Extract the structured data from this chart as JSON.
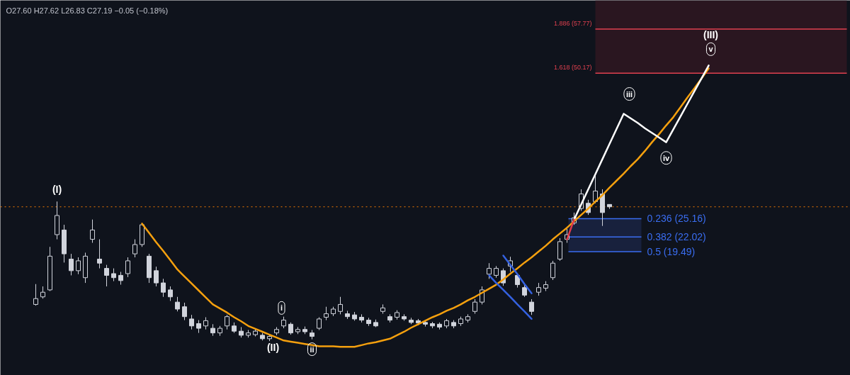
{
  "chart_data": {
    "type": "candlestick",
    "subtitle": "O27.60 H27.62 L26.83 C27.19 −0.05 (−0.18%)",
    "color": "#d1d4dc",
    "categories": [
      null,
      null,
      null,
      null,
      null,
      null,
      null,
      null,
      null,
      null,
      null,
      null,
      null,
      null,
      null,
      null,
      null,
      null,
      null,
      null,
      null,
      null,
      null,
      null,
      null,
      null,
      null,
      null,
      null,
      null,
      null,
      null,
      null,
      null,
      null,
      null,
      null,
      null,
      null,
      null,
      null,
      null,
      null,
      null,
      null,
      null,
      null,
      null,
      null,
      null,
      null,
      null,
      null,
      null,
      null,
      null,
      null,
      null,
      null,
      null,
      null,
      null,
      null,
      null,
      null,
      null,
      null,
      null,
      null,
      null,
      null,
      null,
      null,
      null,
      null,
      null,
      null,
      null,
      null,
      null,
      null,
      null,
      null,
      null,
      null,
      null,
      null,
      null,
      null,
      null,
      null,
      null,
      null,
      null,
      null,
      null,
      null,
      null,
      null,
      null,
      null,
      null,
      null,
      null,
      null,
      null,
      null,
      null,
      null,
      null,
      null,
      null,
      null,
      null,
      null
    ],
    "ohlc": [
      [
        10.4,
        13.9,
        10.2,
        11.4
      ],
      [
        11.7,
        13.5,
        11.4,
        12.5
      ],
      [
        12.9,
        20.3,
        12.7,
        18.7
      ],
      [
        22.4,
        28.1,
        21.6,
        25.7
      ],
      [
        23.2,
        24.1,
        17.6,
        19.1
      ],
      [
        18.2,
        19.1,
        15.4,
        16.2
      ],
      [
        16.2,
        18.5,
        15.6,
        17.9
      ],
      [
        15.0,
        19.3,
        14.1,
        18.7
      ],
      [
        21.6,
        25.0,
        21.0,
        23.2
      ],
      [
        18.2,
        21.6,
        16.6,
        17.5
      ],
      [
        16.6,
        17.2,
        13.5,
        15.4
      ],
      [
        15.7,
        16.6,
        14.4,
        15.0
      ],
      [
        15.4,
        16.0,
        13.8,
        14.5
      ],
      [
        15.7,
        18.5,
        15.1,
        17.9
      ],
      [
        19.1,
        21.6,
        18.5,
        20.7
      ],
      [
        20.7,
        24.3,
        20.3,
        24.1
      ],
      [
        18.7,
        19.1,
        14.1,
        15.0
      ],
      [
        16.2,
        16.9,
        13.5,
        14.1
      ],
      [
        14.1,
        14.8,
        11.7,
        12.5
      ],
      [
        12.9,
        13.5,
        11.0,
        11.7
      ],
      [
        10.8,
        11.7,
        9.2,
        9.6
      ],
      [
        10.0,
        10.7,
        7.7,
        8.3
      ],
      [
        7.9,
        8.6,
        6.1,
        6.7
      ],
      [
        7.1,
        7.7,
        5.5,
        6.3
      ],
      [
        6.7,
        8.2,
        6.1,
        7.6
      ],
      [
        6.3,
        7.0,
        5.0,
        5.5
      ],
      [
        5.5,
        6.7,
        5.0,
        6.3
      ],
      [
        6.7,
        8.6,
        6.1,
        8.3
      ],
      [
        6.7,
        7.3,
        5.5,
        5.8
      ],
      [
        5.8,
        6.5,
        4.7,
        5.1
      ],
      [
        5.1,
        6.0,
        4.7,
        5.5
      ],
      [
        5.2,
        6.3,
        4.9,
        5.8
      ],
      [
        5.1,
        5.5,
        4.2,
        4.5
      ],
      [
        4.5,
        5.2,
        4.1,
        4.9
      ],
      [
        5.5,
        6.5,
        5.1,
        6.1
      ],
      [
        6.7,
        8.3,
        6.3,
        7.7
      ],
      [
        7.0,
        7.3,
        5.2,
        5.5
      ],
      [
        5.7,
        6.5,
        5.3,
        6.1
      ],
      [
        6.1,
        6.6,
        5.3,
        5.7
      ],
      [
        5.5,
        6.0,
        4.4,
        4.9
      ],
      [
        6.3,
        8.2,
        6.0,
        7.9
      ],
      [
        8.2,
        10.0,
        7.7,
        8.8
      ],
      [
        8.8,
        10.0,
        8.4,
        9.6
      ],
      [
        9.2,
        11.7,
        8.7,
        10.4
      ],
      [
        8.8,
        9.3,
        7.9,
        8.3
      ],
      [
        8.6,
        9.1,
        7.6,
        7.9
      ],
      [
        8.2,
        8.7,
        7.3,
        7.7
      ],
      [
        7.7,
        8.1,
        6.7,
        7.1
      ],
      [
        7.3,
        7.8,
        6.5,
        6.7
      ],
      [
        9.2,
        10.4,
        8.8,
        9.8
      ],
      [
        8.3,
        8.7,
        7.3,
        7.7
      ],
      [
        8.2,
        9.4,
        7.8,
        9.0
      ],
      [
        8.3,
        8.7,
        7.6,
        7.9
      ],
      [
        7.7,
        8.1,
        7.0,
        7.3
      ],
      [
        7.6,
        7.9,
        6.8,
        7.2
      ],
      [
        7.3,
        7.7,
        6.6,
        7.0
      ],
      [
        7.1,
        7.4,
        6.3,
        6.7
      ],
      [
        7.0,
        7.3,
        6.1,
        6.5
      ],
      [
        6.7,
        7.9,
        6.3,
        7.6
      ],
      [
        7.3,
        7.7,
        6.3,
        6.7
      ],
      [
        7.1,
        8.3,
        6.7,
        7.9
      ],
      [
        7.7,
        8.7,
        7.3,
        8.3
      ],
      [
        9.2,
        11.3,
        8.8,
        10.8
      ],
      [
        10.8,
        13.5,
        10.4,
        12.9
      ],
      [
        15.6,
        17.5,
        14.8,
        16.6
      ],
      [
        15.4,
        17.0,
        15.0,
        16.6
      ],
      [
        16.2,
        16.6,
        13.6,
        14.1
      ],
      [
        17.0,
        18.6,
        16.0,
        17.9
      ],
      [
        15.4,
        15.7,
        13.3,
        13.8
      ],
      [
        13.3,
        13.8,
        11.7,
        12.0
      ],
      [
        10.8,
        11.3,
        8.6,
        9.2
      ],
      [
        12.5,
        14.1,
        11.9,
        13.3
      ],
      [
        13.2,
        14.4,
        12.7,
        13.8
      ],
      [
        15.0,
        17.9,
        14.6,
        17.5
      ],
      [
        18.2,
        21.8,
        17.9,
        21.2
      ],
      [
        21.6,
        23.4,
        21.0,
        22.4
      ],
      [
        24.4,
        26.2,
        24.1,
        25.3
      ],
      [
        26.9,
        30.2,
        26.5,
        29.4
      ],
      [
        27.8,
        28.4,
        25.8,
        26.2
      ],
      [
        28.1,
        32.7,
        27.8,
        29.9
      ],
      [
        29.4,
        30.2,
        23.9,
        26.2
      ],
      [
        27.6,
        27.62,
        26.83,
        27.19
      ],
      null,
      null,
      null,
      null,
      null,
      null,
      null,
      null,
      null,
      null,
      null,
      null,
      null,
      null,
      null,
      null,
      null,
      null,
      null,
      null,
      null,
      null,
      null,
      null,
      null,
      null,
      null,
      null,
      null,
      null,
      null,
      null,
      null
    ],
    "series": [
      {
        "type": "line",
        "color": "#f5a00e",
        "values": [
          null,
          null,
          null,
          null,
          null,
          null,
          null,
          null,
          null,
          null,
          null,
          null,
          null,
          null,
          null,
          24.3,
          22.7,
          21.1,
          19.6,
          18.0,
          16.4,
          15.2,
          14.0,
          12.8,
          11.6,
          10.4,
          9.7,
          9.0,
          8.2,
          7.5,
          6.7,
          6.2,
          5.7,
          5.2,
          4.7,
          4.2,
          4.0,
          3.8,
          3.6,
          3.4,
          3.2,
          3.2,
          3.2,
          3.1,
          3.1,
          3.1,
          3.4,
          3.7,
          3.9,
          4.2,
          4.5,
          5.1,
          5.7,
          6.4,
          7.0,
          7.6,
          8.2,
          8.7,
          9.3,
          9.8,
          10.4,
          11.1,
          11.7,
          12.4,
          13.1,
          13.8,
          14.7,
          15.7,
          16.6,
          17.6,
          18.5,
          19.5,
          20.5,
          21.6,
          22.6,
          23.6,
          24.7,
          25.8,
          26.9,
          28.1,
          29.2,
          30.5,
          31.7,
          32.9,
          34.2,
          35.4,
          36.8,
          38.3,
          39.7,
          41.2,
          42.6,
          44.3,
          46.0,
          47.6,
          49.3,
          51.0,
          null,
          null,
          null,
          null,
          null,
          null,
          null,
          null,
          null,
          null,
          null,
          null,
          null,
          null,
          null,
          null,
          null,
          null,
          null
        ]
      },
      {
        "type": "line",
        "color": "#ffffff",
        "values": [
          null,
          null,
          null,
          null,
          null,
          null,
          null,
          null,
          null,
          null,
          null,
          null,
          null,
          null,
          null,
          null,
          null,
          null,
          null,
          null,
          null,
          null,
          null,
          null,
          null,
          null,
          null,
          null,
          null,
          null,
          null,
          null,
          null,
          null,
          null,
          null,
          null,
          null,
          null,
          null,
          null,
          null,
          null,
          null,
          null,
          null,
          null,
          null,
          null,
          null,
          null,
          null,
          null,
          null,
          null,
          null,
          null,
          null,
          null,
          null,
          null,
          null,
          null,
          null,
          null,
          null,
          null,
          null,
          null,
          null,
          null,
          null,
          null,
          null,
          null,
          null,
          25.0,
          27.6,
          30.2,
          32.8,
          35.4,
          38.0,
          40.6,
          43.2,
          42.4,
          41.6,
          40.7,
          39.9,
          39.1,
          38.3,
          40.5,
          42.7,
          44.9,
          47.1,
          49.3,
          51.5,
          null,
          null,
          null,
          null,
          null,
          null,
          null,
          null,
          null,
          null,
          null,
          null,
          null,
          null,
          null,
          null,
          null,
          null,
          null
        ]
      },
      {
        "type": "line",
        "color": "#3461e0",
        "values": [
          null,
          null,
          null,
          null,
          null,
          null,
          null,
          null,
          null,
          null,
          null,
          null,
          null,
          null,
          null,
          null,
          null,
          null,
          null,
          null,
          null,
          null,
          null,
          null,
          null,
          null,
          null,
          null,
          null,
          null,
          null,
          null,
          null,
          null,
          null,
          null,
          null,
          null,
          null,
          null,
          null,
          null,
          null,
          null,
          null,
          null,
          null,
          null,
          null,
          null,
          null,
          null,
          null,
          null,
          null,
          null,
          null,
          null,
          null,
          null,
          null,
          null,
          null,
          null,
          15.4,
          14.1,
          12.9,
          11.7,
          10.4,
          9.2,
          7.9,
          null,
          null,
          null,
          null,
          null,
          null,
          null,
          null,
          null,
          null,
          null,
          null,
          null,
          null,
          null,
          null,
          null,
          null,
          null,
          null,
          null,
          null,
          null,
          null,
          null,
          null,
          null,
          null,
          null,
          null,
          null,
          null,
          null,
          null,
          null,
          null,
          null,
          null,
          null,
          null,
          null,
          null,
          null,
          null
        ]
      },
      {
        "type": "line",
        "color": "#3461e0",
        "values": [
          null,
          null,
          null,
          null,
          null,
          null,
          null,
          null,
          null,
          null,
          null,
          null,
          null,
          null,
          null,
          null,
          null,
          null,
          null,
          null,
          null,
          null,
          null,
          null,
          null,
          null,
          null,
          null,
          null,
          null,
          null,
          null,
          null,
          null,
          null,
          null,
          null,
          null,
          null,
          null,
          null,
          null,
          null,
          null,
          null,
          null,
          null,
          null,
          null,
          null,
          null,
          null,
          null,
          null,
          null,
          null,
          null,
          null,
          null,
          null,
          null,
          null,
          null,
          null,
          null,
          null,
          18.8,
          17.2,
          15.6,
          13.9,
          12.3,
          null,
          null,
          null,
          null,
          null,
          null,
          null,
          null,
          null,
          null,
          null,
          null,
          null,
          null,
          null,
          null,
          null,
          null,
          null,
          null,
          null,
          null,
          null,
          null,
          null,
          null,
          null,
          null,
          null,
          null,
          null,
          null,
          null,
          null,
          null,
          null,
          null,
          null,
          null,
          null,
          null,
          null,
          null,
          null
        ]
      },
      {
        "type": "line",
        "color": "#e03a4a",
        "values": [
          null,
          null,
          null,
          null,
          null,
          null,
          null,
          null,
          null,
          null,
          null,
          null,
          null,
          null,
          null,
          null,
          null,
          null,
          null,
          null,
          null,
          null,
          null,
          null,
          null,
          null,
          null,
          null,
          null,
          null,
          null,
          null,
          null,
          null,
          null,
          null,
          null,
          null,
          null,
          null,
          null,
          null,
          null,
          null,
          null,
          null,
          null,
          null,
          null,
          null,
          null,
          null,
          null,
          null,
          null,
          null,
          null,
          null,
          null,
          null,
          null,
          null,
          null,
          null,
          null,
          null,
          null,
          null,
          null,
          null,
          null,
          null,
          null,
          null,
          null,
          21.6,
          25.0,
          null,
          null,
          null,
          null,
          null,
          null,
          null,
          null,
          null,
          null,
          null,
          null,
          null,
          null,
          null,
          null,
          null,
          null,
          null,
          null,
          null,
          null,
          null,
          null,
          null,
          null,
          null,
          null,
          null,
          null,
          null,
          null,
          null,
          null,
          null,
          null,
          null,
          null
        ]
      }
    ],
    "ylim": [
      -1.8,
      62.7
    ],
    "tick_labels": false,
    "grid": false,
    "ref_lines": [
      {
        "axis": "y",
        "value": 27.19,
        "color": "#f57c00",
        "line_style": "dotted"
      },
      {
        "axis": "y",
        "value": 25.16,
        "label": "0.236 (25.16)",
        "color": "#3a6df0"
      },
      {
        "axis": "y",
        "value": 22.02,
        "label": "0.382 (22.02)",
        "color": "#3a6df0"
      },
      {
        "axis": "y",
        "value": 19.49,
        "label": "0.5 (19.49)",
        "color": "#3a6df0"
      },
      {
        "axis": "y",
        "value": 50.17,
        "label": "1.618 (50.17)",
        "color": "#e0404f"
      },
      {
        "axis": "y",
        "value": 57.77,
        "label": "1.886 (57.77)",
        "color": "#e0404f"
      }
    ],
    "bands": [
      {
        "axis": "y",
        "from": 50.17,
        "to": 62.7,
        "color": "#2a1620"
      },
      {
        "axis": "y",
        "from": 22.02,
        "to": 25.16,
        "color": "#18213d"
      },
      {
        "axis": "y",
        "from": 19.49,
        "to": 22.02,
        "color": "#18213d"
      }
    ],
    "annotations": [
      "(I)",
      "(II)",
      {
        "text": "i",
        "y": 9.8
      },
      {
        "text": "ii",
        "y": 2.7
      },
      {
        "text": "iii",
        "y": 46.6
      },
      {
        "text": "iv",
        "y": 35.6
      },
      {
        "text": "v",
        "y": 54.3
      },
      "(III)"
    ]
  }
}
